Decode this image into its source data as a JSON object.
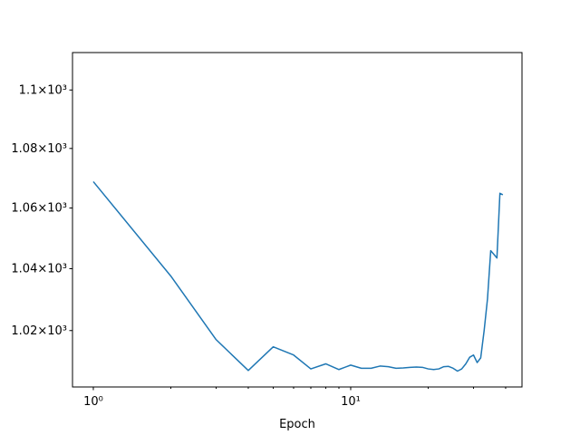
{
  "chart_data": {
    "type": "line",
    "xlabel": "Epoch",
    "xscale": "log",
    "yscale": "log",
    "x": [
      1,
      2,
      3,
      4,
      5,
      6,
      7,
      8,
      9,
      10,
      11,
      12,
      13,
      14,
      15,
      16,
      17,
      18,
      19,
      20,
      21,
      22,
      23,
      24,
      25,
      26,
      27,
      28,
      29,
      30,
      31,
      32,
      33,
      34,
      35,
      36,
      37,
      38,
      39
    ],
    "series": [
      {
        "color": "#1f77b4",
        "values": [
          1068.8,
          1037.6,
          1017.1,
          1007.3,
          1014.8,
          1012.2,
          1007.8,
          1009.4,
          1007.6,
          1009.0,
          1008.0,
          1008.0,
          1008.7,
          1008.5,
          1008.0,
          1008.1,
          1008.3,
          1008.4,
          1008.3,
          1007.8,
          1007.6,
          1007.8,
          1008.5,
          1008.6,
          1008.0,
          1007.1,
          1007.8,
          1009.4,
          1011.5,
          1012.2,
          1009.8,
          1011.3,
          1020.0,
          1030.2,
          1045.9,
          1044.7,
          1043.5,
          1064.9,
          1064.4
        ]
      }
    ],
    "xlim": [
      0.83,
      46.3
    ],
    "ylim": [
      1002.1,
      1113
    ],
    "xticks": [
      {
        "value": 1,
        "label": "10⁰"
      },
      {
        "value": 10,
        "label": "10¹"
      }
    ],
    "xminorticks": [
      2,
      3,
      4,
      5,
      6,
      7,
      8,
      9,
      20,
      30,
      40
    ],
    "yticks": [
      {
        "value": 1020,
        "label": "1.02×10³"
      },
      {
        "value": 1040,
        "label": "1.04×10³"
      },
      {
        "value": 1060,
        "label": "1.06×10³"
      },
      {
        "value": 1080,
        "label": "1.08×10³"
      },
      {
        "value": 1100,
        "label": "1.1×10³"
      }
    ],
    "grid": false
  }
}
